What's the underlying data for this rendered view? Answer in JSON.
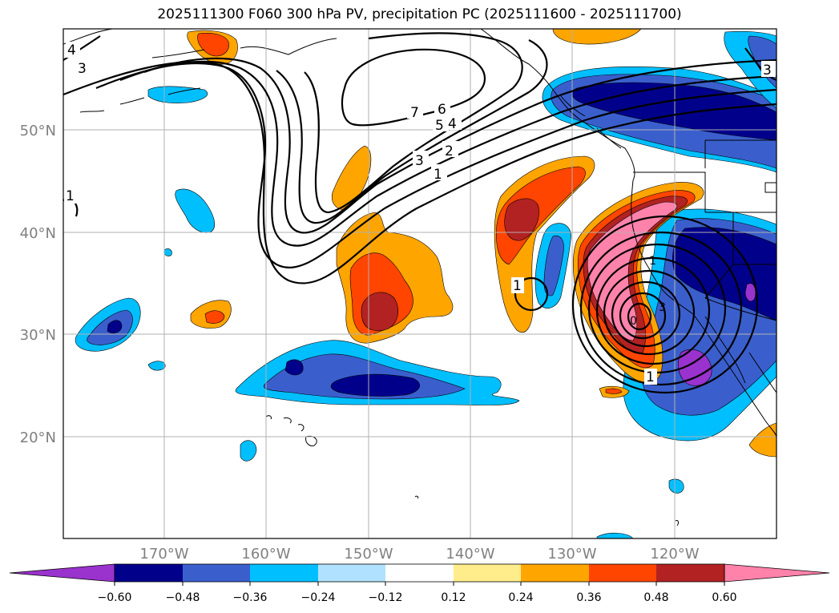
{
  "title": "2025111300 F060 300 hPa PV, precipitation PC (2025111600 - 2025111700)",
  "lat_labels": [
    "50°N",
    "40°N",
    "30°N",
    "20°N"
  ],
  "lon_labels": [
    "170°W",
    "160°W",
    "150°W",
    "140°W",
    "130°W",
    "120°W"
  ],
  "colorbar": {
    "ticks": [
      "−0.60",
      "−0.48",
      "−0.36",
      "−0.24",
      "−0.12",
      "0.12",
      "0.24",
      "0.36",
      "0.48",
      "0.60"
    ],
    "colors": [
      "#9a32cd",
      "#00008b",
      "#3a5fcd",
      "#00bfff",
      "#b0e2ff",
      "#ffffff",
      "#ffec8b",
      "#ffa500",
      "#ff4500",
      "#b22222",
      "#ff82ab"
    ]
  },
  "contour_labels": {
    "c7": "7",
    "c6": "6",
    "c5": "5",
    "c4": "4",
    "c3": "3",
    "c2": "2",
    "c1": "1",
    "nw4": "4",
    "nw3": "3",
    "ne3": "3",
    "w1": "1",
    "cut1": "1",
    "sw1": "1",
    "low0": "0",
    "low3": "3",
    "low1": "1"
  },
  "colors": {
    "grid": "#b0b0b0",
    "axis_label": "#808080"
  }
}
